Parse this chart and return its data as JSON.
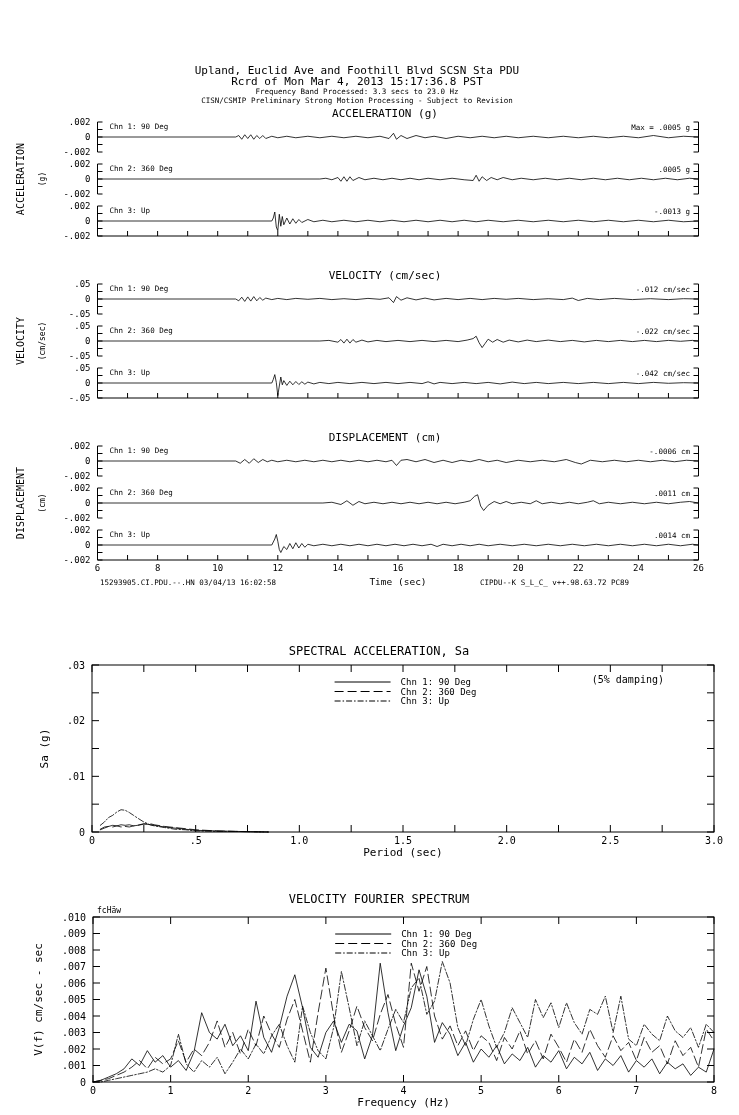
{
  "chart_data": [
    {
      "type": "line",
      "title": "ACCELERATION (g)",
      "annotations": [
        "Max = .0005 g",
        "Upland, Euclid Ave and Foothill Blvd    SCSN Sta PDU",
        "Rcrd of Mon Mar  4, 2013 15:17:36.8 PST",
        "Frequency Band Processed: 3.3 secs to 23.0 Hz",
        "CISN/CSMIP Preliminary Strong Motion Processing - Subject to Revision"
      ],
      "xlim": [
        6,
        26
      ],
      "ylim": [
        -0.002,
        0.002
      ],
      "yticks": [
        {
          "value": 0.002,
          "label": ".002"
        },
        {
          "value": 0.001,
          "label": null
        },
        {
          "value": 0,
          "label": "0"
        },
        {
          "value": -0.001,
          "label": null
        },
        {
          "value": -0.002,
          "label": "-.002"
        }
      ],
      "tick_labels": "y",
      "x": [
        6,
        10.6,
        10.7,
        10.8,
        10.9,
        11.0,
        11.1,
        11.2,
        11.3,
        11.4,
        11.5,
        11.6,
        11.8,
        12.0,
        12.3,
        12.6,
        13.0,
        13.4,
        13.8,
        14.2,
        14.6,
        15.0,
        15.4,
        15.7,
        15.85,
        15.95,
        16.1,
        16.3,
        16.6,
        16.9,
        17.2,
        17.6,
        18.0,
        18.4,
        18.8,
        19.2,
        19.6,
        20.0,
        20.5,
        21.0,
        21.5,
        22.0,
        22.5,
        23.0,
        23.5,
        24.0,
        24.5,
        25.0,
        25.5,
        26.0
      ],
      "series": [
        {
          "name": "Chn 1: 90 Deg",
          "color": "#000000",
          "values": [
            0,
            0,
            0.0002,
            -0.0003,
            0.0003,
            -0.0002,
            0.0003,
            -0.0003,
            0.0002,
            -0.0002,
            0.0002,
            -0.0002,
            0.0001,
            -0.0001,
            0.0001,
            -0.0001,
            0.0001,
            -0.0001,
            0.0001,
            -0.0001,
            0.0001,
            -0.0001,
            0.0001,
            -0.0002,
            0.0005,
            -0.0003,
            0.0002,
            -0.0002,
            0.0002,
            -0.0001,
            0.0001,
            -0.0002,
            0.0001,
            -0.0001,
            0.0001,
            -0.0001,
            0.0001,
            -0.0001,
            0.0001,
            -0.0001,
            0.0001,
            -0.0001,
            0.0001,
            -0.0001,
            0.0001,
            -0.0001,
            0.0002,
            -0.0001,
            0.0001,
            0
          ]
        }
      ]
    },
    {
      "type": "line",
      "ylabel": "ACCELERATION (g)",
      "annotations": [
        ".0005 g"
      ],
      "xlim": [
        6,
        26
      ],
      "ylim": [
        -0.002,
        0.002
      ],
      "yticks": [
        {
          "value": 0.002,
          "label": ".002"
        },
        {
          "value": 0.001,
          "label": null
        },
        {
          "value": 0,
          "label": "0"
        },
        {
          "value": -0.001,
          "label": null
        },
        {
          "value": -0.002,
          "label": "-.002"
        }
      ],
      "tick_labels": "y",
      "x": [
        6,
        13.4,
        13.6,
        13.8,
        14.0,
        14.1,
        14.2,
        14.3,
        14.4,
        14.5,
        14.7,
        14.9,
        15.2,
        15.5,
        15.8,
        16.1,
        16.4,
        16.7,
        17.0,
        17.4,
        17.8,
        18.2,
        18.5,
        18.6,
        18.7,
        18.8,
        18.95,
        19.1,
        19.3,
        19.5,
        19.8,
        20.1,
        20.5,
        20.9,
        21.3,
        21.7,
        22.1,
        22.5,
        22.9,
        23.3,
        23.7,
        24.1,
        24.5,
        24.9,
        25.3,
        25.7,
        26.0
      ],
      "series": [
        {
          "name": "Chn 2: 360 Deg",
          "color": "#000000",
          "values": [
            0,
            0,
            0.0001,
            -0.0001,
            0.0002,
            -0.0003,
            0.0003,
            -0.0003,
            0.0003,
            -0.0002,
            0.0002,
            -0.0001,
            0.0001,
            -0.0001,
            0.0001,
            -0.0001,
            0.0001,
            -0.0001,
            0.0001,
            -0.0001,
            0.0001,
            -0.0001,
            -0.0002,
            0.0005,
            -0.0003,
            0.0003,
            -0.0002,
            0.0002,
            -0.0001,
            0.0002,
            -0.0001,
            0.0001,
            -0.0001,
            0.0001,
            -0.0001,
            0.0001,
            -0.0001,
            0.0001,
            -0.0001,
            0.0001,
            -0.0001,
            0.0001,
            -0.0001,
            0.0001,
            -0.0001,
            0.0001,
            0
          ]
        }
      ]
    },
    {
      "type": "line",
      "annotations": [
        "-.0013 g"
      ],
      "xlim": [
        6,
        26
      ],
      "ylim": [
        -0.002,
        0.002
      ],
      "xticks": [
        6,
        {
          "value": 7,
          "label": null
        },
        8,
        {
          "value": 9,
          "label": null
        },
        10,
        {
          "value": 11,
          "label": null
        },
        12,
        {
          "value": 13,
          "label": null
        },
        14,
        {
          "value": 15,
          "label": null
        },
        16,
        {
          "value": 17,
          "label": null
        },
        18,
        {
          "value": 19,
          "label": null
        },
        20,
        {
          "value": 21,
          "label": null
        },
        22,
        {
          "value": 23,
          "label": null
        },
        24,
        {
          "value": 25,
          "label": null
        },
        26
      ],
      "yticks": [
        {
          "value": 0.002,
          "label": ".002"
        },
        {
          "value": 0.001,
          "label": null
        },
        {
          "value": 0,
          "label": "0"
        },
        {
          "value": -0.001,
          "label": null
        },
        {
          "value": -0.002,
          "label": "-.002"
        }
      ],
      "tick_labels": "y",
      "x": [
        6,
        11.8,
        11.85,
        11.9,
        11.95,
        12.0,
        12.05,
        12.1,
        12.15,
        12.2,
        12.3,
        12.4,
        12.5,
        12.6,
        12.7,
        12.8,
        13.0,
        13.2,
        13.5,
        13.8,
        14.2,
        14.6,
        15.0,
        15.4,
        15.8,
        16.2,
        16.6,
        17.0,
        17.4,
        17.8,
        18.2,
        18.6,
        19.0,
        19.5,
        20.0,
        20.5,
        21.0,
        21.5,
        22.0,
        22.5,
        23.0,
        23.5,
        24.0,
        24.5,
        25.0,
        25.5,
        26.0
      ],
      "series": [
        {
          "name": "Chn 3: Up",
          "color": "#000000",
          "values": [
            0,
            0,
            0.0004,
            0.0012,
            -0.0008,
            -0.0013,
            0.0009,
            -0.0007,
            0.0006,
            -0.0005,
            0.0004,
            -0.0004,
            0.0003,
            -0.0003,
            0.0002,
            -0.0002,
            0.0002,
            -0.0001,
            0.0001,
            -0.0001,
            0.0001,
            -0.0001,
            0.0001,
            -0.0001,
            0.0001,
            -0.0001,
            0.0001,
            -0.0001,
            0.0001,
            -0.0001,
            0.0001,
            -0.0001,
            0.0001,
            -0.0001,
            0.0001,
            -0.0001,
            0.0001,
            -0.0001,
            0.0001,
            -0.0001,
            0.0001,
            -0.0001,
            0.0001,
            -0.0001,
            0.0001,
            -0.0001,
            0
          ]
        }
      ]
    },
    {
      "type": "line",
      "title": "VELOCITY (cm/sec)",
      "annotations": [
        "-.012 cm/sec"
      ],
      "xlim": [
        6,
        26
      ],
      "ylim": [
        -0.05,
        0.05
      ],
      "yticks": [
        {
          "value": 0.05,
          "label": ".05"
        },
        {
          "value": 0.025,
          "label": null
        },
        {
          "value": 0,
          "label": "0"
        },
        {
          "value": -0.025,
          "label": null
        },
        {
          "value": -0.05,
          "label": "-.05"
        }
      ],
      "tick_labels": "y",
      "x": [
        6,
        10.6,
        10.7,
        10.8,
        10.9,
        11.0,
        11.1,
        11.2,
        11.3,
        11.4,
        11.5,
        11.6,
        11.8,
        12.0,
        12.3,
        12.6,
        13.0,
        13.4,
        13.8,
        14.2,
        14.6,
        15.0,
        15.4,
        15.7,
        15.85,
        15.95,
        16.1,
        16.3,
        16.6,
        16.9,
        17.2,
        17.6,
        18.0,
        18.4,
        18.8,
        19.2,
        19.6,
        20.0,
        20.5,
        21.0,
        21.5,
        21.8,
        22.0,
        22.3,
        22.7,
        23.2,
        23.8,
        24.4,
        25.0,
        25.5,
        26.0
      ],
      "series": [
        {
          "name": "Chn 1: 90 Deg",
          "color": "#000000",
          "values": [
            0,
            0,
            -0.006,
            0.006,
            -0.008,
            0.007,
            -0.007,
            0.008,
            -0.006,
            0.005,
            -0.004,
            0.003,
            -0.002,
            0.002,
            -0.002,
            0.002,
            -0.001,
            0.002,
            -0.002,
            0.001,
            -0.002,
            0.002,
            -0.001,
            0.004,
            -0.012,
            0.008,
            -0.004,
            0.004,
            -0.003,
            0.003,
            -0.003,
            0.002,
            -0.002,
            0.002,
            -0.002,
            0.002,
            -0.001,
            0.002,
            -0.002,
            0.001,
            -0.002,
            0.003,
            -0.005,
            0.002,
            -0.002,
            0.002,
            -0.002,
            0.001,
            -0.002,
            0.001,
            0
          ]
        }
      ]
    },
    {
      "type": "line",
      "ylabel": "VELOCITY (cm/sec)",
      "annotations": [
        "-.022 cm/sec"
      ],
      "xlim": [
        6,
        26
      ],
      "ylim": [
        -0.05,
        0.05
      ],
      "yticks": [
        {
          "value": 0.05,
          "label": ".05"
        },
        {
          "value": 0.025,
          "label": null
        },
        {
          "value": 0,
          "label": "0"
        },
        {
          "value": -0.025,
          "label": null
        },
        {
          "value": -0.05,
          "label": "-.05"
        }
      ],
      "tick_labels": "y",
      "x": [
        6,
        13.4,
        13.7,
        14.0,
        14.1,
        14.2,
        14.3,
        14.4,
        14.5,
        14.6,
        14.8,
        15.0,
        15.3,
        15.6,
        16.0,
        16.4,
        16.8,
        17.2,
        17.6,
        18.0,
        18.3,
        18.5,
        18.6,
        18.7,
        18.8,
        18.9,
        19.0,
        19.15,
        19.3,
        19.5,
        19.7,
        20.0,
        20.3,
        20.6,
        21.0,
        21.4,
        21.8,
        22.2,
        22.6,
        23.0,
        23.4,
        23.8,
        24.2,
        24.6,
        25.0,
        25.4,
        25.8,
        26.0
      ],
      "series": [
        {
          "name": "Chn 2: 360 Deg",
          "color": "#000000",
          "values": [
            0,
            0,
            0.002,
            -0.004,
            0.005,
            -0.007,
            0.006,
            -0.007,
            0.005,
            -0.004,
            0.003,
            -0.003,
            0.002,
            -0.002,
            0.002,
            -0.002,
            0.002,
            -0.002,
            0.002,
            -0.002,
            0.003,
            0.008,
            0.016,
            -0.006,
            -0.022,
            -0.008,
            0.006,
            -0.004,
            0.005,
            -0.004,
            0.003,
            -0.003,
            0.003,
            -0.002,
            0.003,
            -0.002,
            0.002,
            -0.003,
            0.002,
            -0.002,
            0.002,
            -0.002,
            0.002,
            -0.002,
            0.002,
            -0.001,
            0.002,
            0
          ]
        }
      ]
    },
    {
      "type": "line",
      "annotations": [
        "-.042 cm/sec"
      ],
      "xlim": [
        6,
        26
      ],
      "ylim": [
        -0.05,
        0.05
      ],
      "xticks": [
        6,
        {
          "value": 7,
          "label": null
        },
        8,
        {
          "value": 9,
          "label": null
        },
        10,
        {
          "value": 11,
          "label": null
        },
        12,
        {
          "value": 13,
          "label": null
        },
        14,
        {
          "value": 15,
          "label": null
        },
        16,
        {
          "value": 17,
          "label": null
        },
        18,
        {
          "value": 19,
          "label": null
        },
        20,
        {
          "value": 21,
          "label": null
        },
        22,
        {
          "value": 23,
          "label": null
        },
        24,
        {
          "value": 25,
          "label": null
        },
        26
      ],
      "yticks": [
        {
          "value": 0.05,
          "label": ".05"
        },
        {
          "value": 0.025,
          "label": null
        },
        {
          "value": 0,
          "label": "0"
        },
        {
          "value": -0.025,
          "label": null
        },
        {
          "value": -0.05,
          "label": "-.05"
        }
      ],
      "tick_labels": "y",
      "x": [
        6,
        11.8,
        11.85,
        11.9,
        11.95,
        12.0,
        12.05,
        12.1,
        12.15,
        12.2,
        12.3,
        12.4,
        12.5,
        12.6,
        12.7,
        12.8,
        12.9,
        13.0,
        13.2,
        13.4,
        13.7,
        14.0,
        14.4,
        14.8,
        15.2,
        15.6,
        16.0,
        16.4,
        16.8,
        17.0,
        17.2,
        17.4,
        17.8,
        18.2,
        18.6,
        19.0,
        19.4,
        19.8,
        20.2,
        20.6,
        21.0,
        21.5,
        22.0,
        22.5,
        23.0,
        23.5,
        24.0,
        24.5,
        25.0,
        25.5,
        26.0
      ],
      "series": [
        {
          "name": "Chn 3: Up",
          "color": "#000000",
          "values": [
            0,
            0,
            0.012,
            0.028,
            0.002,
            -0.042,
            -0.01,
            0.02,
            -0.006,
            0.008,
            -0.008,
            0.006,
            -0.006,
            0.005,
            -0.005,
            0.004,
            -0.004,
            0.003,
            -0.003,
            0.002,
            -0.002,
            0.002,
            -0.002,
            0.002,
            -0.002,
            0.002,
            -0.002,
            0.002,
            -0.002,
            0.004,
            -0.003,
            0.002,
            -0.002,
            0.002,
            -0.002,
            0.002,
            -0.003,
            0.003,
            -0.002,
            0.002,
            -0.002,
            0.002,
            -0.002,
            0.002,
            -0.002,
            0.002,
            -0.002,
            0.002,
            -0.001,
            0.001,
            0
          ]
        }
      ]
    },
    {
      "type": "line",
      "title": "DISPLACEMENT (cm)",
      "annotations": [
        "-.0006 cm"
      ],
      "xlim": [
        6,
        26
      ],
      "ylim": [
        -0.002,
        0.002
      ],
      "yticks": [
        {
          "value": 0.002,
          "label": ".002"
        },
        {
          "value": 0.001,
          "label": null
        },
        {
          "value": 0,
          "label": "0"
        },
        {
          "value": -0.001,
          "label": null
        },
        {
          "value": -0.002,
          "label": "-.002"
        }
      ],
      "tick_labels": "y",
      "x": [
        6,
        10.6,
        10.75,
        10.9,
        11.05,
        11.2,
        11.35,
        11.5,
        11.65,
        11.8,
        12.0,
        12.3,
        12.6,
        12.9,
        13.2,
        13.5,
        13.8,
        14.1,
        14.4,
        14.7,
        15.0,
        15.3,
        15.6,
        15.8,
        15.95,
        16.1,
        16.3,
        16.6,
        16.9,
        17.2,
        17.5,
        17.8,
        18.1,
        18.4,
        18.7,
        19.0,
        19.3,
        19.6,
        20.0,
        20.4,
        20.8,
        21.2,
        21.6,
        21.9,
        22.1,
        22.4,
        22.8,
        23.2,
        23.6,
        24.0,
        24.4,
        24.8,
        25.2,
        25.6,
        26.0
      ],
      "series": [
        {
          "name": "Chn 1: 90 Deg",
          "color": "#000000",
          "values": [
            0,
            0,
            -0.0003,
            0.0002,
            -0.0003,
            0.0003,
            -0.0002,
            0.0002,
            -0.0001,
            0.0001,
            -0.0001,
            0.0001,
            -0.0001,
            0.0001,
            -0.0001,
            0.0001,
            -0.0001,
            0.0001,
            -0.0001,
            0.0001,
            -0.0001,
            0.0001,
            -0.0001,
            0.0001,
            -0.0006,
            0.0001,
            0.0002,
            -0.0001,
            0.0002,
            -0.0002,
            0.0001,
            -0.0002,
            0.0001,
            -0.0001,
            0.0002,
            -0.0001,
            0.0001,
            -0.0002,
            0.0001,
            -0.0001,
            0.0001,
            -0.0001,
            0.0002,
            -0.0002,
            -0.0004,
            0.0001,
            -0.0001,
            0.0001,
            -0.0001,
            0.0001,
            -0.0001,
            0.0001,
            -0.0001,
            0.0001,
            0
          ]
        }
      ]
    },
    {
      "type": "line",
      "ylabel": "DISPLACEMENT (cm)",
      "annotations": [
        ".0011 cm"
      ],
      "xlim": [
        6,
        26
      ],
      "ylim": [
        -0.002,
        0.002
      ],
      "yticks": [
        {
          "value": 0.002,
          "label": ".002"
        },
        {
          "value": 0.001,
          "label": null
        },
        {
          "value": 0,
          "label": "0"
        },
        {
          "value": -0.001,
          "label": null
        },
        {
          "value": -0.002,
          "label": "-.002"
        }
      ],
      "tick_labels": "y",
      "x": [
        6,
        13.5,
        13.8,
        14.1,
        14.3,
        14.5,
        14.7,
        14.9,
        15.2,
        15.5,
        15.8,
        16.1,
        16.4,
        16.7,
        17.0,
        17.3,
        17.6,
        17.9,
        18.2,
        18.4,
        18.55,
        18.65,
        18.75,
        18.85,
        19.0,
        19.2,
        19.4,
        19.6,
        19.8,
        20.1,
        20.4,
        20.6,
        20.8,
        21.1,
        21.4,
        21.7,
        22.0,
        22.3,
        22.5,
        22.7,
        23.0,
        23.4,
        23.8,
        24.2,
        24.6,
        25.0,
        25.4,
        25.7,
        26.0
      ],
      "series": [
        {
          "name": "Chn 2: 360 Deg",
          "color": "#000000",
          "values": [
            0,
            0,
            0.0001,
            -0.0002,
            0.0003,
            -0.0003,
            0.0002,
            -0.0001,
            0.0001,
            -0.0001,
            0.0001,
            -0.0001,
            0.0001,
            -0.0001,
            0.0001,
            -0.0001,
            0.0001,
            -0.0001,
            0.0001,
            0.0003,
            0.0009,
            0.0011,
            -0.0004,
            -0.001,
            -0.0003,
            0.0002,
            -0.0001,
            0.0002,
            -0.0001,
            0.0001,
            -0.0001,
            0.0003,
            -0.0001,
            0.0001,
            -0.0001,
            0.0001,
            -0.0001,
            0.0001,
            0.0003,
            -0.0001,
            0.0001,
            -0.0001,
            0.0001,
            -0.0001,
            0.0001,
            -0.0001,
            0.0001,
            0.0002,
            0
          ]
        }
      ]
    },
    {
      "type": "line",
      "xlabel": "Time (sec)",
      "annotations": [
        ".0014 cm",
        "15293905.CI.PDU.--.HN 03/04/13 16:02:58",
        "CIPDU--K  S_L_C_  v++.98.63.72  PC89"
      ],
      "xlim": [
        6,
        26
      ],
      "ylim": [
        -0.002,
        0.002
      ],
      "xticks": [
        6,
        {
          "value": 7,
          "label": null
        },
        8,
        {
          "value": 9,
          "label": null
        },
        10,
        {
          "value": 11,
          "label": null
        },
        12,
        {
          "value": 13,
          "label": null
        },
        14,
        {
          "value": 15,
          "label": null
        },
        16,
        {
          "value": 17,
          "label": null
        },
        18,
        {
          "value": 19,
          "label": null
        },
        20,
        {
          "value": 21,
          "label": null
        },
        22,
        {
          "value": 23,
          "label": null
        },
        24,
        {
          "value": 25,
          "label": null
        },
        26
      ],
      "yticks": [
        {
          "value": 0.002,
          "label": ".002"
        },
        {
          "value": 0.001,
          "label": null
        },
        {
          "value": 0,
          "label": "0"
        },
        {
          "value": -0.001,
          "label": null
        },
        {
          "value": -0.002,
          "label": "-.002"
        }
      ],
      "x": [
        6,
        11.8,
        11.9,
        11.95,
        12.0,
        12.05,
        12.1,
        12.2,
        12.3,
        12.4,
        12.5,
        12.6,
        12.7,
        12.8,
        12.9,
        13.0,
        13.2,
        13.5,
        13.8,
        14.1,
        14.4,
        14.7,
        15.0,
        15.3,
        15.6,
        15.9,
        16.2,
        16.5,
        16.8,
        17.1,
        17.3,
        17.5,
        17.8,
        18.1,
        18.4,
        18.7,
        19.0,
        19.4,
        19.8,
        20.2,
        20.6,
        21.0,
        21.4,
        21.8,
        22.2,
        22.6,
        23.0,
        23.4,
        23.8,
        24.2,
        24.6,
        25.0,
        25.4,
        25.8,
        26.0
      ],
      "series": [
        {
          "name": "Chn 3: Up",
          "color": "#000000",
          "values": [
            0,
            0,
            0.0008,
            0.0014,
            0.0005,
            -0.0006,
            -0.001,
            -0.0002,
            -0.0006,
            0.0002,
            -0.0005,
            0.0003,
            -0.0004,
            0.0002,
            -0.0003,
            0.0001,
            -0.0001,
            0.0001,
            -0.0001,
            0.0001,
            -0.0001,
            0.0001,
            -0.0001,
            0.0001,
            -0.0001,
            0.0001,
            -0.0001,
            0.0001,
            -0.0001,
            0.0001,
            -0.0002,
            0.0001,
            -0.0001,
            0.0001,
            -0.0001,
            0.0001,
            -0.0001,
            0.0001,
            -0.0001,
            0.0001,
            -0.0001,
            0.0001,
            -0.0001,
            0.0001,
            -0.0001,
            0.0001,
            -0.0001,
            0.0001,
            -0.0001,
            0.0001,
            -0.0001,
            0.0001,
            -0.0001,
            0.0001,
            0
          ]
        }
      ]
    },
    {
      "type": "line",
      "title": "SPECTRAL ACCELERATION, Sa",
      "xlabel": "Period (sec)",
      "ylabel": "Sa (g)",
      "annotations": [
        "(5% damping)"
      ],
      "legend": "top",
      "xlim": [
        0,
        3
      ],
      "ylim": [
        0,
        0.03
      ],
      "xticks": [
        0,
        {
          "value": 0.25,
          "label": null
        },
        {
          "value": 0.5,
          "label": ".5"
        },
        {
          "value": 0.75,
          "label": null
        },
        {
          "value": 1,
          "label": "1.0"
        },
        {
          "value": 1.25,
          "label": null
        },
        {
          "value": 1.5,
          "label": "1.5"
        },
        {
          "value": 1.75,
          "label": null
        },
        {
          "value": 2,
          "label": "2.0"
        },
        {
          "value": 2.25,
          "label": null
        },
        {
          "value": 2.5,
          "label": "2.5"
        },
        {
          "value": 2.75,
          "label": null
        },
        {
          "value": 3,
          "label": "3.0"
        }
      ],
      "yticks": [
        {
          "value": 0,
          "label": "0"
        },
        {
          "value": 0.005,
          "label": null
        },
        {
          "value": 0.01,
          "label": ".01"
        },
        {
          "value": 0.015,
          "label": null
        },
        {
          "value": 0.02,
          "label": ".02"
        },
        {
          "value": 0.025,
          "label": null
        },
        {
          "value": 0.03,
          "label": ".03"
        }
      ],
      "x": [
        0.04,
        0.06,
        0.08,
        0.1,
        0.12,
        0.14,
        0.16,
        0.18,
        0.2,
        0.22,
        0.25,
        0.28,
        0.3,
        0.35,
        0.4,
        0.45,
        0.5,
        0.6,
        0.7,
        0.85
      ],
      "series": [
        {
          "name": "Chn 1: 90 Deg",
          "color": "#000000",
          "line_style": "solid",
          "values": [
            0.0005,
            0.0009,
            0.001,
            0.0012,
            0.0011,
            0.0013,
            0.0012,
            0.0013,
            0.0011,
            0.0012,
            0.0015,
            0.0013,
            0.0012,
            0.0009,
            0.0007,
            0.0005,
            0.0003,
            0.0002,
            0.0001,
            0
          ]
        },
        {
          "name": "Chn 2: 360 Deg",
          "color": "#000000",
          "line_style": "dashed",
          "values": [
            0.0004,
            0.0007,
            0.001,
            0.0009,
            0.0011,
            0.0009,
            0.001,
            0.0009,
            0.0011,
            0.0012,
            0.0014,
            0.0015,
            0.0013,
            0.001,
            0.0008,
            0.0006,
            0.0004,
            0.0002,
            0.0001,
            0
          ]
        },
        {
          "name": "Chn 3: Up",
          "color": "#000000",
          "line_style": "dotted",
          "values": [
            0.0012,
            0.0018,
            0.0026,
            0.003,
            0.0036,
            0.004,
            0.0039,
            0.0035,
            0.003,
            0.0025,
            0.0018,
            0.0013,
            0.0011,
            0.0008,
            0.0005,
            0.0004,
            0.0002,
            0.0001,
            0.0001,
            0
          ]
        }
      ]
    },
    {
      "type": "line",
      "title": "VELOCITY FOURIER SPECTRUM",
      "xlabel": "Frequency (Hz)",
      "ylabel": "V(f)   cm/sec - sec",
      "annotations": [
        "fcHäw"
      ],
      "legend": "top",
      "xlim": [
        0,
        8
      ],
      "ylim": [
        0,
        0.01
      ],
      "xticks": [
        0,
        1,
        2,
        3,
        4,
        5,
        6,
        7,
        8
      ],
      "yticks": [
        {
          "value": 0,
          "label": "0"
        },
        {
          "value": 0.001,
          "label": ".001"
        },
        {
          "value": 0.002,
          "label": ".002"
        },
        {
          "value": 0.003,
          "label": ".003"
        },
        {
          "value": 0.004,
          "label": ".004"
        },
        {
          "value": 0.005,
          "label": ".005"
        },
        {
          "value": 0.006,
          "label": ".006"
        },
        {
          "value": 0.007,
          "label": ".007"
        },
        {
          "value": 0.008,
          "label": ".008"
        },
        {
          "value": 0.009,
          "label": ".009"
        },
        {
          "value": 0.01,
          "label": ".010"
        }
      ],
      "x": [
        0,
        0.1,
        0.2,
        0.3,
        0.4,
        0.5,
        0.6,
        0.7,
        0.8,
        0.9,
        1,
        1.1,
        1.2,
        1.3,
        1.4,
        1.5,
        1.6,
        1.7,
        1.8,
        1.9,
        2,
        2.1,
        2.2,
        2.3,
        2.4,
        2.5,
        2.6,
        2.7,
        2.8,
        2.9,
        3,
        3.1,
        3.2,
        3.3,
        3.4,
        3.5,
        3.6,
        3.7,
        3.8,
        3.9,
        4,
        4.1,
        4.2,
        4.3,
        4.4,
        4.5,
        4.6,
        4.7,
        4.8,
        4.9,
        5,
        5.1,
        5.2,
        5.3,
        5.4,
        5.5,
        5.6,
        5.7,
        5.8,
        5.9,
        6,
        6.1,
        6.2,
        6.3,
        6.4,
        6.5,
        6.6,
        6.7,
        6.8,
        6.9,
        7,
        7.1,
        7.2,
        7.3,
        7.4,
        7.5,
        7.6,
        7.7,
        7.8,
        7.9,
        8
      ],
      "series": [
        {
          "name": "Chn 1: 90 Deg",
          "color": "#000000",
          "line_style": "solid",
          "values": [
            0,
            0.0001,
            0.0003,
            0.0005,
            0.0008,
            0.0014,
            0.001,
            0.0019,
            0.0012,
            0.0016,
            0.0009,
            0.0013,
            0.0007,
            0.0018,
            0.0042,
            0.003,
            0.0026,
            0.0035,
            0.0022,
            0.0028,
            0.0019,
            0.0049,
            0.0027,
            0.0018,
            0.0033,
            0.0052,
            0.0065,
            0.0045,
            0.0021,
            0.0015,
            0.003,
            0.0037,
            0.0024,
            0.0035,
            0.0031,
            0.0014,
            0.0028,
            0.0072,
            0.0042,
            0.0019,
            0.0034,
            0.0045,
            0.0068,
            0.0052,
            0.0024,
            0.0036,
            0.0029,
            0.0016,
            0.0024,
            0.0012,
            0.002,
            0.0015,
            0.0022,
            0.0011,
            0.0017,
            0.0013,
            0.0021,
            0.0009,
            0.0016,
            0.0012,
            0.0019,
            0.0008,
            0.0015,
            0.0011,
            0.0018,
            0.0007,
            0.0014,
            0.001,
            0.0016,
            0.0006,
            0.0013,
            0.0009,
            0.0014,
            0.0005,
            0.0012,
            0.0008,
            0.0011,
            0.0004,
            0.0009,
            0.0006,
            0.002
          ]
        },
        {
          "name": "Chn 2: 360 Deg",
          "color": "#000000",
          "line_style": "dashed",
          "values": [
            0,
            0.0001,
            0.0002,
            0.0004,
            0.0006,
            0.0009,
            0.0013,
            0.0008,
            0.0015,
            0.0011,
            0.0014,
            0.0025,
            0.0012,
            0.002,
            0.0016,
            0.0024,
            0.0037,
            0.0021,
            0.003,
            0.0017,
            0.0032,
            0.0022,
            0.004,
            0.0029,
            0.0021,
            0.0038,
            0.005,
            0.0031,
            0.0012,
            0.0042,
            0.0069,
            0.004,
            0.0018,
            0.0031,
            0.0046,
            0.0033,
            0.0025,
            0.0041,
            0.0053,
            0.0035,
            0.0021,
            0.0072,
            0.0055,
            0.007,
            0.004,
            0.0026,
            0.0034,
            0.0022,
            0.0031,
            0.0019,
            0.0028,
            0.0024,
            0.0013,
            0.0027,
            0.002,
            0.0031,
            0.0017,
            0.0025,
            0.0014,
            0.0029,
            0.0021,
            0.0012,
            0.0026,
            0.0018,
            0.0032,
            0.0022,
            0.0015,
            0.0028,
            0.0019,
            0.0024,
            0.0013,
            0.0027,
            0.0018,
            0.0022,
            0.0011,
            0.0025,
            0.0016,
            0.0021,
            0.0009,
            0.0032,
            0.0025
          ]
        },
        {
          "name": "Chn 3: Up",
          "color": "#000000",
          "line_style": "dotted",
          "values": [
            0,
            0,
            0.0001,
            0.0002,
            0.0003,
            0.0004,
            0.0005,
            0.0006,
            0.0008,
            0.0006,
            0.001,
            0.0029,
            0.0011,
            0.0006,
            0.0013,
            0.0009,
            0.0015,
            0.0005,
            0.0012,
            0.002,
            0.0014,
            0.0023,
            0.0017,
            0.0028,
            0.0035,
            0.0022,
            0.0012,
            0.0046,
            0.003,
            0.0019,
            0.0014,
            0.0033,
            0.0067,
            0.0045,
            0.0022,
            0.0037,
            0.0028,
            0.0019,
            0.0032,
            0.0044,
            0.0036,
            0.0057,
            0.0063,
            0.0041,
            0.0049,
            0.0073,
            0.006,
            0.0033,
            0.0022,
            0.0038,
            0.005,
            0.0034,
            0.0021,
            0.003,
            0.0045,
            0.0036,
            0.0027,
            0.005,
            0.0039,
            0.0048,
            0.0033,
            0.0048,
            0.0036,
            0.0029,
            0.0044,
            0.0041,
            0.0052,
            0.003,
            0.0052,
            0.0026,
            0.0022,
            0.0035,
            0.0029,
            0.0025,
            0.004,
            0.0031,
            0.0027,
            0.0033,
            0.0021,
            0.0035,
            0.003
          ]
        }
      ]
    }
  ]
}
